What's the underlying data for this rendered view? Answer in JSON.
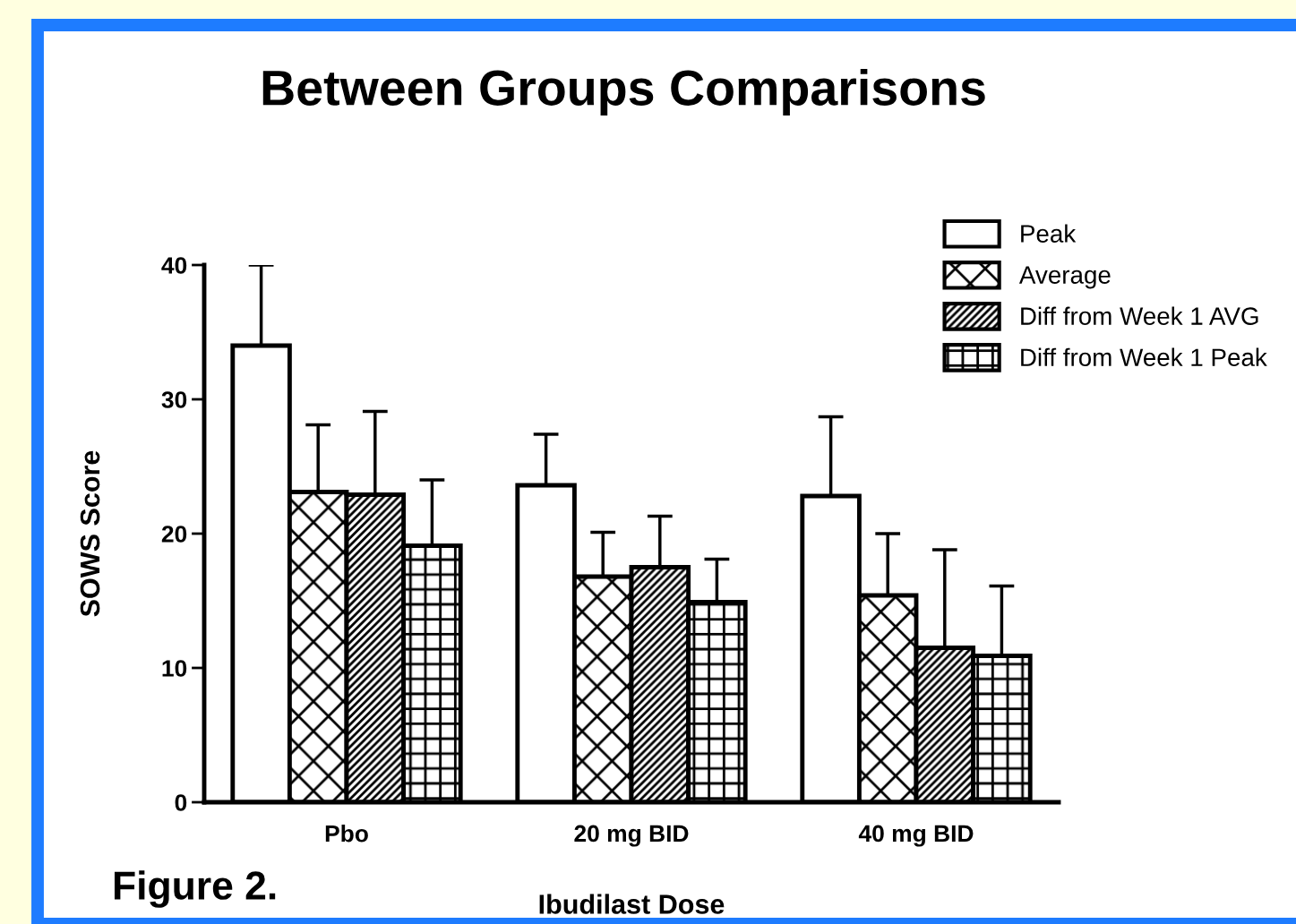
{
  "chart_data": {
    "type": "bar",
    "title": "Between Groups Comparisons",
    "xlabel": "Ibudilast Dose",
    "ylabel": "SOWS Score",
    "categories": [
      "Pbo",
      "20 mg BID",
      "40 mg BID"
    ],
    "series": [
      {
        "name": "Peak",
        "color": "#ffffff",
        "values": [
          34.0,
          23.6,
          22.8
        ],
        "errors": [
          [
            34.0,
            40.0
          ],
          [
            23.6,
            27.4
          ],
          [
            22.8,
            28.7
          ]
        ]
      },
      {
        "name": "Average",
        "color": "#ffffff",
        "values": [
          23.1,
          16.8,
          15.4
        ],
        "errors": [
          [
            23.1,
            28.1
          ],
          [
            16.8,
            20.1
          ],
          [
            15.4,
            20.0
          ]
        ]
      },
      {
        "name": "Diff from Week 1 AVG",
        "color": "#ffffff",
        "values": [
          22.9,
          17.5,
          11.5
        ],
        "errors": [
          [
            22.9,
            29.1
          ],
          [
            17.5,
            21.3
          ],
          [
            11.5,
            18.8
          ]
        ]
      },
      {
        "name": "Diff from Week 1 Peak",
        "color": "#ffffff",
        "values": [
          19.1,
          14.9,
          10.9
        ],
        "errors": [
          [
            19.1,
            24.0
          ],
          [
            14.9,
            18.1
          ],
          [
            10.9,
            16.1
          ]
        ]
      }
    ],
    "ylim": [
      0,
      40
    ],
    "yticks": [
      0,
      10,
      20,
      30,
      40
    ],
    "grid": false,
    "legend": "top right",
    "annotations": [
      "Figure 2."
    ]
  }
}
